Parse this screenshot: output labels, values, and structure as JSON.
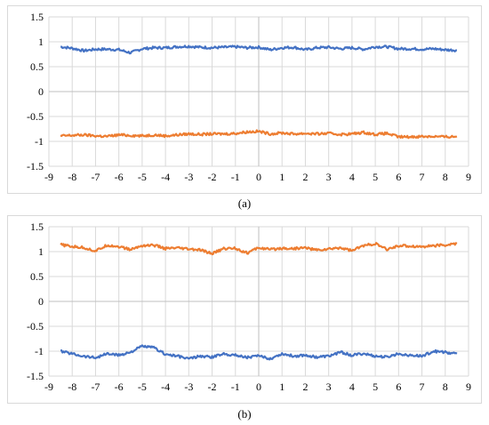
{
  "chart_data": [
    {
      "type": "line",
      "caption": "(a)",
      "xlim": [
        -9,
        9
      ],
      "ylim": [
        -1.5,
        1.5
      ],
      "x_ticks": [
        "-9",
        "-8",
        "-7",
        "-6",
        "-5",
        "-4",
        "-3",
        "-2",
        "-1",
        "0",
        "1",
        "2",
        "3",
        "4",
        "5",
        "6",
        "7",
        "8",
        "9"
      ],
      "y_ticks": [
        "1.5",
        "1",
        "0.5",
        "0",
        "-0.5",
        "-1",
        "-1.5"
      ],
      "grid": true,
      "series": [
        {
          "color": "#4472C4",
          "x": [
            -8.5,
            -8,
            -7.5,
            -7,
            -6.5,
            -6,
            -5.5,
            -5,
            -4.5,
            -4,
            -3.5,
            -3,
            -2.5,
            -2,
            -1.5,
            -1,
            -0.5,
            0,
            0.5,
            1,
            1.5,
            2,
            2.5,
            3,
            3.5,
            4,
            4.5,
            5,
            5.5,
            6,
            6.5,
            7,
            7.5,
            8,
            8.5
          ],
          "y": [
            0.9,
            0.87,
            0.82,
            0.85,
            0.85,
            0.84,
            0.78,
            0.86,
            0.88,
            0.88,
            0.9,
            0.91,
            0.89,
            0.88,
            0.89,
            0.9,
            0.88,
            0.89,
            0.84,
            0.88,
            0.89,
            0.84,
            0.88,
            0.89,
            0.86,
            0.88,
            0.85,
            0.9,
            0.9,
            0.86,
            0.86,
            0.85,
            0.86,
            0.84,
            0.83
          ]
        },
        {
          "color": "#ED7D31",
          "x": [
            -8.5,
            -8,
            -7.5,
            -7,
            -6.5,
            -6,
            -5.5,
            -5,
            -4.5,
            -4,
            -3.5,
            -3,
            -2.5,
            -2,
            -1.5,
            -1,
            -0.5,
            0,
            0.5,
            1,
            1.5,
            2,
            2.5,
            3,
            3.5,
            4,
            4.5,
            5,
            5.5,
            6,
            6.5,
            7,
            7.5,
            8,
            8.5
          ],
          "y": [
            -0.89,
            -0.88,
            -0.87,
            -0.89,
            -0.9,
            -0.87,
            -0.88,
            -0.89,
            -0.87,
            -0.89,
            -0.87,
            -0.85,
            -0.86,
            -0.85,
            -0.85,
            -0.84,
            -0.81,
            -0.8,
            -0.85,
            -0.83,
            -0.85,
            -0.84,
            -0.85,
            -0.84,
            -0.86,
            -0.85,
            -0.82,
            -0.86,
            -0.84,
            -0.91,
            -0.91,
            -0.9,
            -0.9,
            -0.91,
            -0.9
          ]
        }
      ]
    },
    {
      "type": "line",
      "caption": "(b)",
      "xlim": [
        -9,
        9
      ],
      "ylim": [
        -1.5,
        1.5
      ],
      "x_ticks": [
        "-9",
        "-8",
        "-7",
        "-6",
        "-5",
        "-4",
        "-3",
        "-2",
        "-1",
        "0",
        "1",
        "2",
        "3",
        "4",
        "5",
        "6",
        "7",
        "8",
        "9"
      ],
      "y_ticks": [
        "1.5",
        "1",
        "0.5",
        "0",
        "-0.5",
        "-1",
        "-1.5"
      ],
      "grid": true,
      "series": [
        {
          "color": "#ED7D31",
          "x": [
            -8.5,
            -8,
            -7.5,
            -7,
            -6.5,
            -6,
            -5.5,
            -5,
            -4.5,
            -4,
            -3.5,
            -3,
            -2.5,
            -2,
            -1.5,
            -1,
            -0.5,
            0,
            0.5,
            1,
            1.5,
            2,
            2.5,
            3,
            3.5,
            4,
            4.5,
            5,
            5.5,
            6,
            6.5,
            7,
            7.5,
            8,
            8.5
          ],
          "y": [
            1.14,
            1.1,
            1.08,
            1.01,
            1.13,
            1.1,
            1.04,
            1.12,
            1.13,
            1.06,
            1.07,
            1.05,
            1.03,
            0.96,
            1.06,
            1.07,
            0.97,
            1.08,
            1.04,
            1.07,
            1.06,
            1.08,
            1.03,
            1.05,
            1.08,
            1.02,
            1.12,
            1.16,
            1.04,
            1.12,
            1.11,
            1.1,
            1.12,
            1.13,
            1.16
          ]
        },
        {
          "color": "#4472C4",
          "x": [
            -8.5,
            -8,
            -7.5,
            -7,
            -6.5,
            -6,
            -5.5,
            -5,
            -4.5,
            -4,
            -3.5,
            -3,
            -2.5,
            -2,
            -1.5,
            -1,
            -0.5,
            0,
            0.5,
            1,
            1.5,
            2,
            2.5,
            3,
            3.5,
            4,
            4.5,
            5,
            5.5,
            6,
            6.5,
            7,
            7.5,
            8,
            8.5
          ],
          "y": [
            -1.0,
            -1.05,
            -1.1,
            -1.13,
            -1.05,
            -1.08,
            -1.02,
            -0.9,
            -0.93,
            -1.06,
            -1.1,
            -1.15,
            -1.1,
            -1.12,
            -1.05,
            -1.08,
            -1.12,
            -1.1,
            -1.15,
            -1.05,
            -1.1,
            -1.08,
            -1.12,
            -1.1,
            -1.02,
            -1.08,
            -1.05,
            -1.1,
            -1.12,
            -1.05,
            -1.08,
            -1.1,
            -1.0,
            -1.02,
            -1.05
          ]
        }
      ]
    }
  ]
}
